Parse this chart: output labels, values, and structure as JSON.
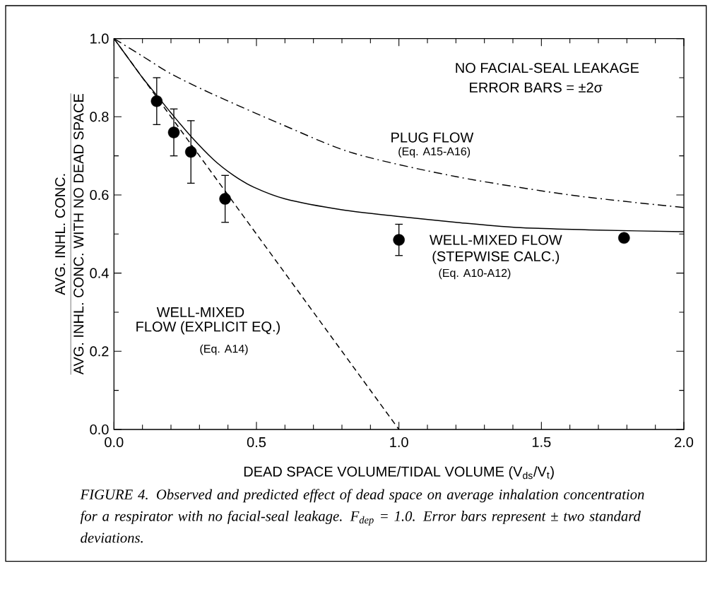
{
  "chart_data": {
    "type": "line",
    "xlabel": "DEAD SPACE VOLUME/TIDAL VOLUME (V$_{ds}$/V$_{t}$)",
    "ylabel": "\\frac{\\mbox{AVG. INHL. CONC.}}{\\mbox{AVG. INHL. CONC. WITH NO DEAD SPACE}}",
    "xlim": [
      0,
      2
    ],
    "ylim": [
      0,
      1
    ],
    "xticks": [
      {
        "value": 0,
        "label": "0.0"
      },
      {
        "value": 0.1,
        "label": null
      },
      {
        "value": 0.2,
        "label": null
      },
      {
        "value": 0.3,
        "label": null
      },
      {
        "value": 0.4,
        "label": null
      },
      {
        "value": 0.5,
        "label": "0.5"
      },
      {
        "value": 0.6,
        "label": null
      },
      {
        "value": 0.7,
        "label": null
      },
      {
        "value": 0.8,
        "label": null
      },
      {
        "value": 0.9,
        "label": null
      },
      {
        "value": 1,
        "label": "1.0"
      },
      {
        "value": 1.1,
        "label": null
      },
      {
        "value": 1.2,
        "label": null
      },
      {
        "value": 1.3,
        "label": null
      },
      {
        "value": 1.4,
        "label": null
      },
      {
        "value": 1.5,
        "label": "1.5"
      },
      {
        "value": 1.6,
        "label": null
      },
      {
        "value": 1.7,
        "label": null
      },
      {
        "value": 1.8,
        "label": null
      },
      {
        "value": 1.9,
        "label": null
      },
      {
        "value": 2,
        "label": "2.0"
      }
    ],
    "yticks": [
      {
        "value": 0,
        "label": "0.0"
      },
      {
        "value": 0.1,
        "label": null
      },
      {
        "value": 0.2,
        "label": "0.2"
      },
      {
        "value": 0.3,
        "label": null
      },
      {
        "value": 0.4,
        "label": "0.4"
      },
      {
        "value": 0.5,
        "label": null
      },
      {
        "value": 0.6,
        "label": "0.6"
      },
      {
        "value": 0.7,
        "label": null
      },
      {
        "value": 0.8,
        "label": "0.8"
      },
      {
        "value": 0.9,
        "label": null
      },
      {
        "value": 1,
        "label": "1.0"
      }
    ],
    "series": [
      {
        "line_style": "dashdot",
        "marker": "none",
        "color": "#000000",
        "x": [
          0,
          0.1,
          0.2,
          0.34,
          0.59,
          0.84,
          1.2,
          1.61,
          2.0
        ],
        "values": [
          1,
          0.955,
          0.91,
          0.86,
          0.78,
          0.707,
          0.647,
          0.599,
          0.568
        ]
      },
      {
        "line_style": "solid",
        "marker": "none",
        "color": "#000000",
        "x": [
          0,
          0.05,
          0.1,
          0.15,
          0.2,
          0.27,
          0.35,
          0.42,
          0.49,
          0.6,
          0.8,
          1.0,
          1.2,
          1.41,
          1.7,
          2.0
        ],
        "values": [
          1,
          0.95,
          0.9,
          0.855,
          0.81,
          0.75,
          0.69,
          0.65,
          0.62,
          0.59,
          0.562,
          0.545,
          0.53,
          0.517,
          0.51,
          0.506
        ]
      },
      {
        "line_style": "dashed",
        "marker": "none",
        "color": "#000000",
        "x": [
          0,
          1
        ],
        "values": [
          1,
          0
        ]
      },
      {
        "type": "scatter",
        "marker": "circle",
        "color": "#000000",
        "x": [
          0.15,
          0.21,
          0.27,
          0.39,
          1.0,
          1.79
        ],
        "values": [
          0.84,
          0.76,
          0.71,
          0.59,
          0.485,
          0.49
        ],
        "errors": [
          0.06,
          0.06,
          0.08,
          0.06,
          0.04,
          null
        ]
      }
    ],
    "annotations": [
      "NO FACIAL-SEAL LEAKAGE",
      "ERROR BARS = ±2σ",
      "PLUG FLOW",
      "(Eq. A15-A16)",
      "WELL-MIXED FLOW",
      "(STEPWISE CALC.)",
      "(Eq. A10-A12)",
      "WELL-MIXED",
      "FLOW (EXPLICIT EQ.)",
      "(Eq. A14)",
      "FIGURE 4. Observed and predicted effect of dead space on average inhalation concentration for a respirator with no facial-seal leakage. F$_{dep}$ = 1.0. Error bars represent ± two standard deviations."
    ]
  }
}
